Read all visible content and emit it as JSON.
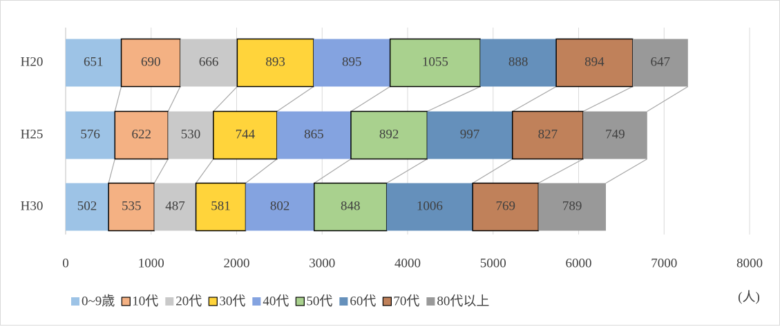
{
  "chart_data": {
    "type": "stacked-bar-horizontal",
    "categories": [
      "H20",
      "H25",
      "H30"
    ],
    "series": [
      {
        "name": "0~9歳",
        "color": "#9dc3e6",
        "border": false,
        "values": [
          651,
          576,
          502
        ]
      },
      {
        "name": "10代",
        "color": "#f4b183",
        "border": true,
        "values": [
          690,
          622,
          535
        ]
      },
      {
        "name": "20代",
        "color": "#c9c9c9",
        "border": false,
        "values": [
          666,
          530,
          487
        ]
      },
      {
        "name": "30代",
        "color": "#ffd43b",
        "border": true,
        "values": [
          893,
          744,
          581
        ]
      },
      {
        "name": "40代",
        "color": "#84a3e0",
        "border": false,
        "values": [
          895,
          865,
          802
        ]
      },
      {
        "name": "50代",
        "color": "#a9d18e",
        "border": true,
        "values": [
          1055,
          892,
          848
        ]
      },
      {
        "name": "60代",
        "color": "#6590bb",
        "border": false,
        "values": [
          888,
          997,
          1006
        ]
      },
      {
        "name": "70代",
        "color": "#c0815a",
        "border": true,
        "values": [
          894,
          827,
          769
        ]
      },
      {
        "name": "80代以上",
        "color": "#999999",
        "border": false,
        "values": [
          647,
          749,
          789
        ]
      }
    ],
    "xlabel": "(人)",
    "xlim": [
      0,
      8000
    ],
    "xticks": [
      0,
      1000,
      2000,
      3000,
      4000,
      5000,
      6000,
      7000,
      8000
    ],
    "grid": true,
    "series_lines": true,
    "legend": "bottom"
  }
}
